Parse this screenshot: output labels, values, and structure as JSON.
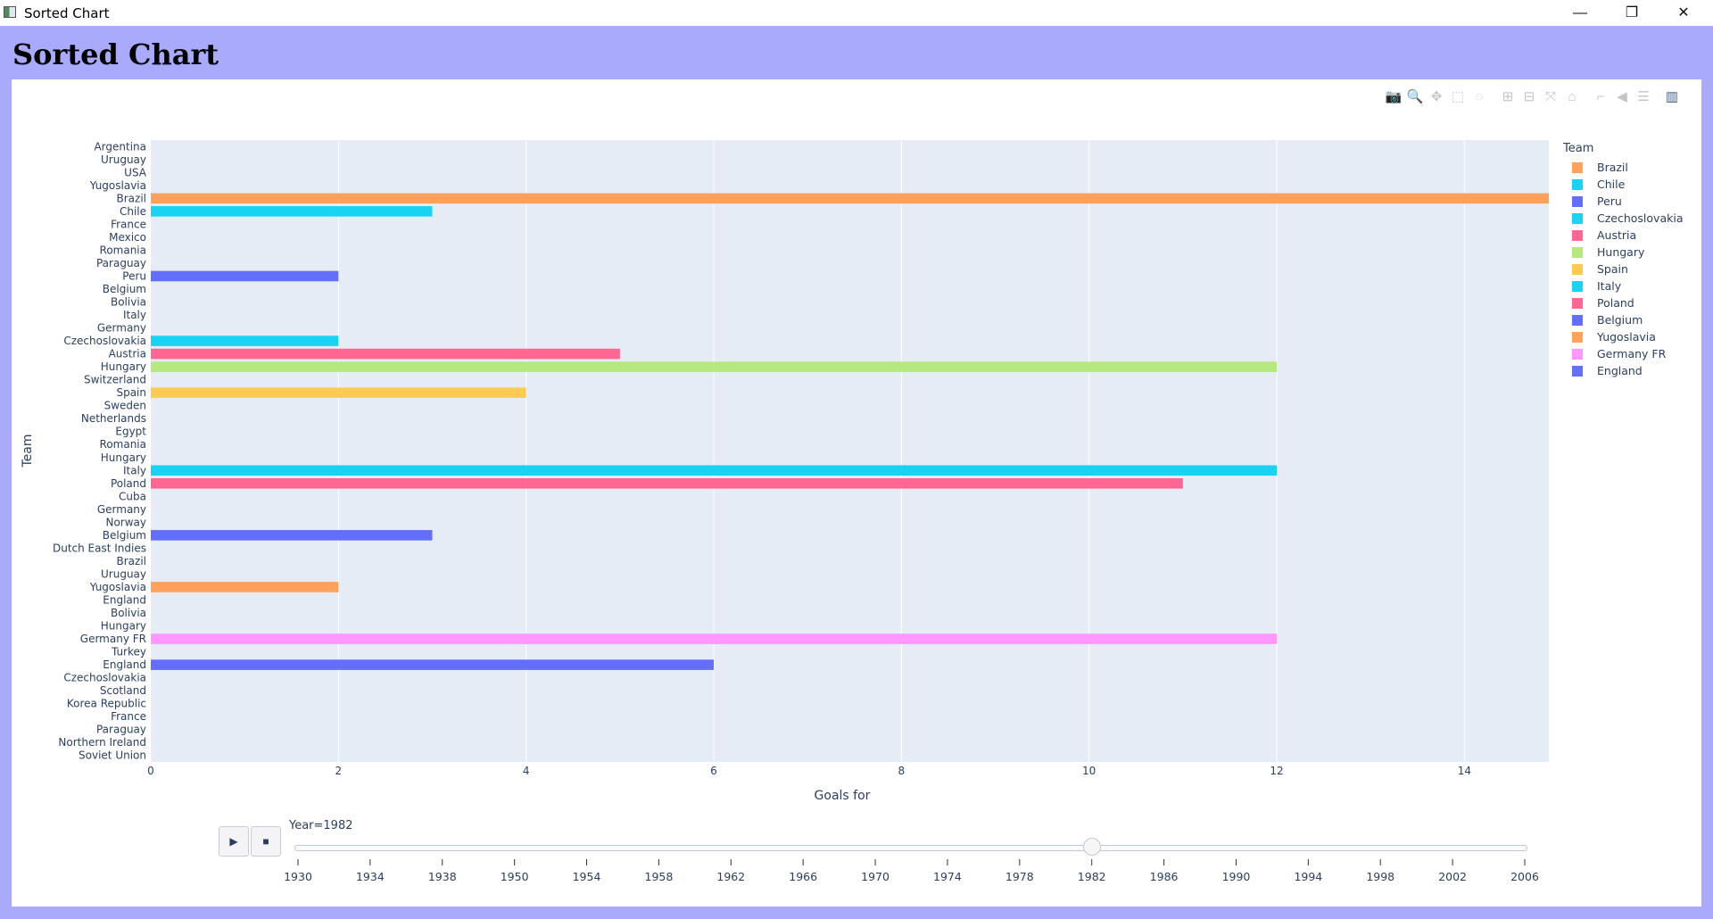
{
  "window": {
    "title": "Sorted Chart",
    "controls": {
      "minimize": "—",
      "restore": "❐",
      "close": "✕"
    }
  },
  "page": {
    "heading": "Sorted Chart"
  },
  "modebar": [
    {
      "name": "camera-icon",
      "glyph": "📷"
    },
    {
      "name": "zoom-icon",
      "glyph": "🔍"
    },
    {
      "name": "pan-icon",
      "glyph": "✥"
    },
    {
      "name": "box-select-icon",
      "glyph": "⬚"
    },
    {
      "name": "lasso-select-icon",
      "glyph": "◌"
    },
    {
      "name": "zoom-in-icon",
      "glyph": "⊞"
    },
    {
      "name": "zoom-out-icon",
      "glyph": "⊟"
    },
    {
      "name": "autoscale-icon",
      "glyph": "⤧"
    },
    {
      "name": "reset-axes-icon",
      "glyph": "⌂"
    },
    {
      "name": "spike-lines-icon",
      "glyph": "⌐"
    },
    {
      "name": "hover-closest-icon",
      "glyph": "◀"
    },
    {
      "name": "hover-compare-icon",
      "glyph": "☰"
    },
    {
      "name": "plotly-logo-icon",
      "glyph": "▥"
    }
  ],
  "chart_data": {
    "type": "bar",
    "orientation": "horizontal",
    "xlabel": "Goals for",
    "ylabel": "Team",
    "xlim": [
      0,
      14.9
    ],
    "xticks": [
      0,
      2,
      4,
      6,
      8,
      10,
      12,
      14
    ],
    "categories": [
      "Argentina",
      "Uruguay",
      "USA",
      "Yugoslavia",
      "Brazil",
      "Chile",
      "France",
      "Mexico",
      "Romania",
      "Paraguay",
      "Peru",
      "Belgium",
      "Bolivia",
      "Italy",
      "Germany",
      "Czechoslovakia",
      "Austria",
      "Hungary",
      "Switzerland",
      "Spain",
      "Sweden",
      "Netherlands",
      "Egypt",
      "Romania",
      "Hungary",
      "Italy",
      "Poland",
      "Cuba",
      "Germany",
      "Norway",
      "Belgium",
      "Dutch East Indies",
      "Brazil",
      "Uruguay",
      "Yugoslavia",
      "England",
      "Bolivia",
      "Hungary",
      "Germany FR",
      "Turkey",
      "England",
      "Czechoslovakia",
      "Scotland",
      "Korea Republic",
      "France",
      "Paraguay",
      "Northern Ireland",
      "Soviet Union"
    ],
    "bars": [
      {
        "index": 4,
        "team": "Brazil",
        "value": 15,
        "color": "#FFA15A"
      },
      {
        "index": 5,
        "team": "Chile",
        "value": 3,
        "color": "#19D3F3"
      },
      {
        "index": 10,
        "team": "Peru",
        "value": 2,
        "color": "#636EFA"
      },
      {
        "index": 15,
        "team": "Czechoslovakia",
        "value": 2,
        "color": "#19D3F3"
      },
      {
        "index": 16,
        "team": "Austria",
        "value": 5,
        "color": "#FF6692"
      },
      {
        "index": 17,
        "team": "Hungary",
        "value": 12,
        "color": "#B6E880"
      },
      {
        "index": 19,
        "team": "Spain",
        "value": 4,
        "color": "#FECB52"
      },
      {
        "index": 25,
        "team": "Italy",
        "value": 12,
        "color": "#19D3F3"
      },
      {
        "index": 26,
        "team": "Poland",
        "value": 11,
        "color": "#FF6692"
      },
      {
        "index": 30,
        "team": "Belgium",
        "value": 3,
        "color": "#636EFA"
      },
      {
        "index": 34,
        "team": "Yugoslavia",
        "value": 2,
        "color": "#FFA15A"
      },
      {
        "index": 38,
        "team": "Germany FR",
        "value": 12,
        "color": "#FF97FF"
      },
      {
        "index": 40,
        "team": "England",
        "value": 6,
        "color": "#636EFA"
      }
    ],
    "legend_title": "Team",
    "legend": [
      {
        "name": "Brazil",
        "color": "#FFA15A"
      },
      {
        "name": "Chile",
        "color": "#19D3F3"
      },
      {
        "name": "Peru",
        "color": "#636EFA"
      },
      {
        "name": "Czechoslovakia",
        "color": "#19D3F3"
      },
      {
        "name": "Austria",
        "color": "#FF6692"
      },
      {
        "name": "Hungary",
        "color": "#B6E880"
      },
      {
        "name": "Spain",
        "color": "#FECB52"
      },
      {
        "name": "Italy",
        "color": "#19D3F3"
      },
      {
        "name": "Poland",
        "color": "#FF6692"
      },
      {
        "name": "Belgium",
        "color": "#636EFA"
      },
      {
        "name": "Yugoslavia",
        "color": "#FFA15A"
      },
      {
        "name": "Germany FR",
        "color": "#FF97FF"
      },
      {
        "name": "England",
        "color": "#636EFA"
      }
    ]
  },
  "slider": {
    "current_label": "Year=1982",
    "current_year": 1982,
    "years": [
      1930,
      1934,
      1938,
      1950,
      1954,
      1958,
      1962,
      1966,
      1970,
      1974,
      1978,
      1982,
      1986,
      1990,
      1994,
      1998,
      2002,
      2006
    ],
    "play_glyph": "▶",
    "stop_glyph": "■"
  },
  "colors": {
    "plot_bg": "#E5ECF6",
    "grid": "#ffffff",
    "axis_text": "#2a3f5f"
  }
}
